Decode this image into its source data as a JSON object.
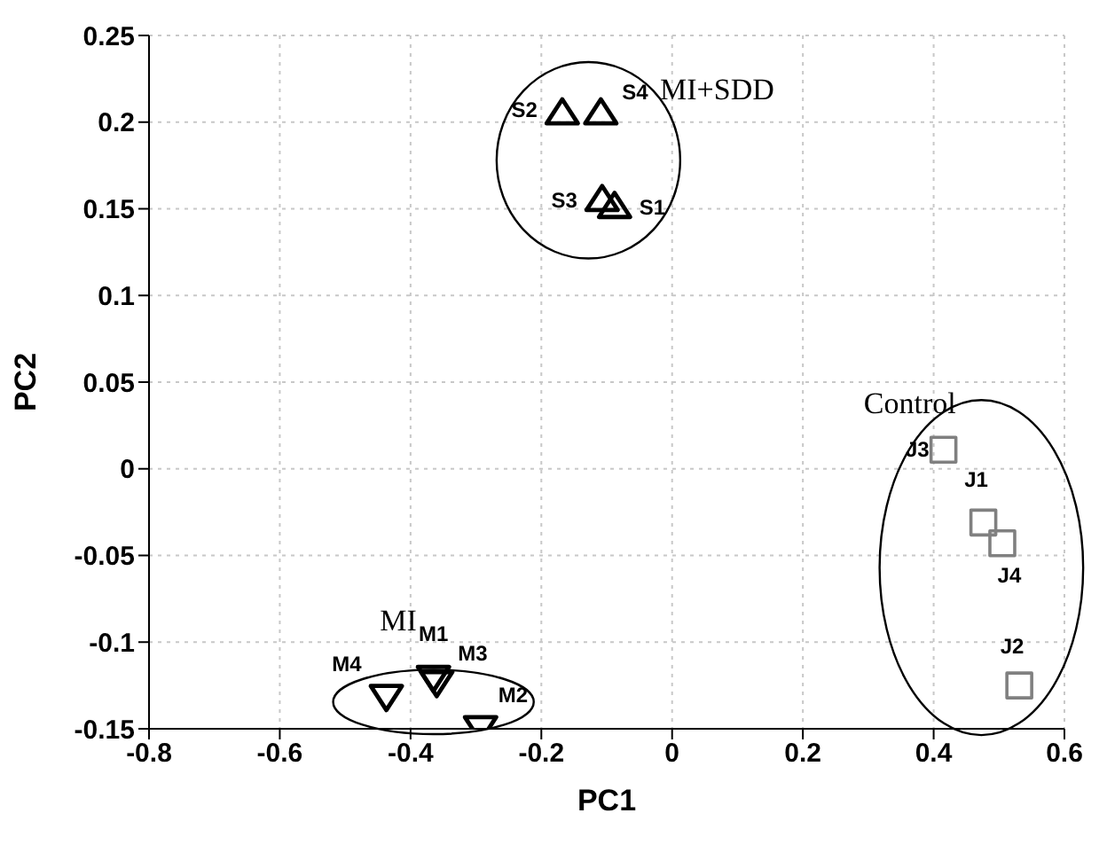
{
  "chart_data": {
    "type": "scatter",
    "xlabel": "PC1",
    "ylabel": "PC2",
    "xlim": [
      -0.8,
      0.6
    ],
    "xticks": [
      -0.8,
      -0.6,
      -0.4,
      -0.2,
      0,
      0.2,
      0.4,
      0.6
    ],
    "ylim": [
      -0.15,
      0.25
    ],
    "yticks": [
      -0.15,
      -0.1,
      -0.05,
      0,
      0.05,
      0.1,
      0.15,
      0.2,
      0.25
    ],
    "grid": true,
    "legend": false,
    "series": [
      {
        "name": "MI+SDD",
        "color": "#000000",
        "marker": "triangle",
        "x": [
          -0.088,
          -0.168,
          -0.107,
          -0.109
        ],
        "values": [
          0.151,
          0.205,
          0.155,
          0.205
        ],
        "value_labels": [
          "S1",
          "S2",
          "S3",
          "S4"
        ]
      },
      {
        "name": "MI",
        "color": "#000000",
        "marker": "triangle-down",
        "x": [
          -0.365,
          -0.293,
          -0.36,
          -0.437
        ],
        "values": [
          -0.12,
          -0.149,
          -0.123,
          -0.131
        ],
        "value_labels": [
          "M1",
          "M2",
          "M3",
          "M4"
        ]
      },
      {
        "name": "Control",
        "color": "#808080",
        "marker": "square",
        "x": [
          0.476,
          0.531,
          0.415,
          0.505
        ],
        "values": [
          -0.031,
          -0.125,
          0.011,
          -0.043
        ],
        "value_labels": [
          "J1",
          "J2",
          "J3",
          "J4"
        ]
      }
    ]
  }
}
